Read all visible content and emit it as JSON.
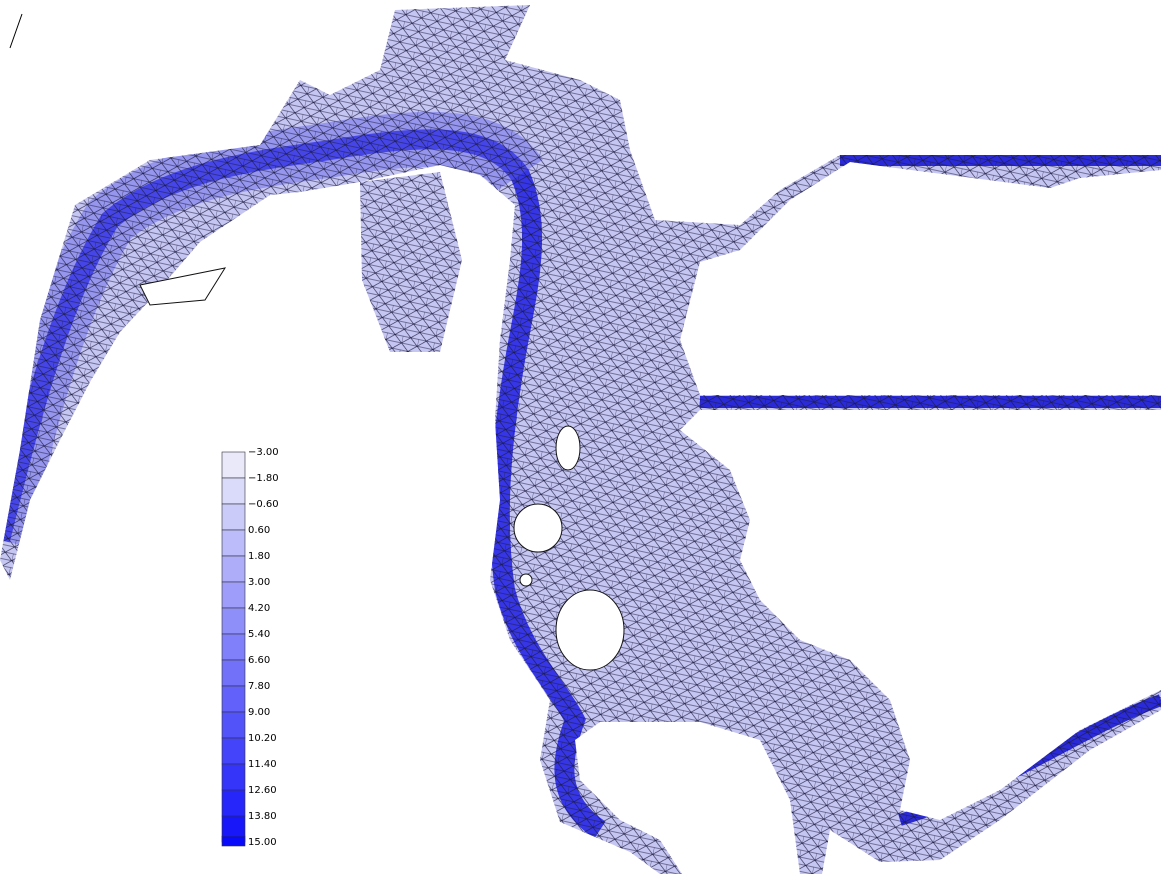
{
  "legend": {
    "labels": [
      "−3.00",
      "−1.80",
      "−0.60",
      "0.60",
      "1.80",
      "3.00",
      "4.20",
      "5.40",
      "6.60",
      "7.80",
      "9.00",
      "10.20",
      "11.40",
      "12.60",
      "13.80",
      "15.00"
    ]
  }
}
